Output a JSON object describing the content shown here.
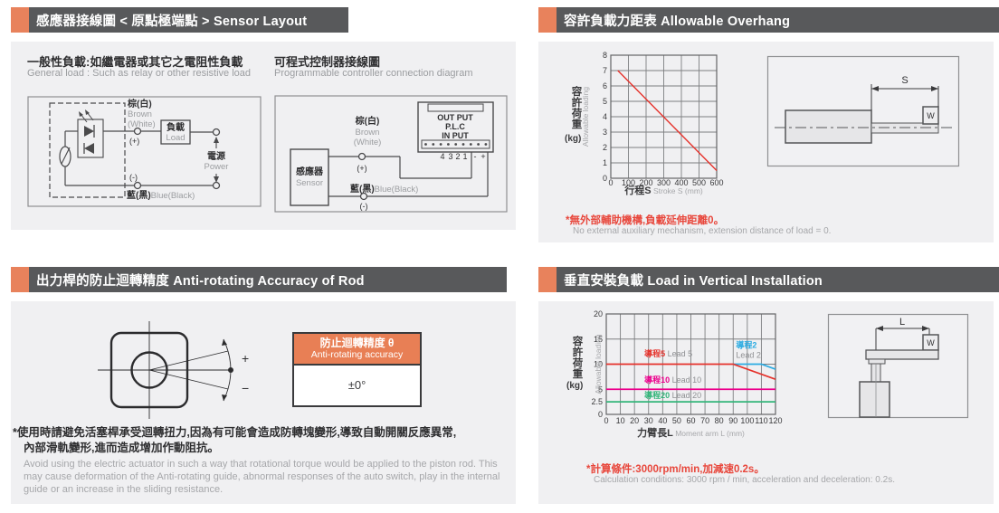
{
  "colors": {
    "accent_orange": "#e8825c",
    "titlebar_gray": "#58595b",
    "panel_bg": "#f0f0f2",
    "note_red": "#e8473c",
    "line_red": "#e5322b",
    "line_cyan": "#2aabe2",
    "line_magenta": "#ec008c",
    "line_green": "#33b57a",
    "text_dark": "#2f2f31",
    "text_gray": "#9b9da0"
  },
  "sections": {
    "sensor": {
      "title": "感應器接線圖 < 原點極端點 > Sensor Layout",
      "general": {
        "heading_zh": "一般性負載:如繼電器或其它之電阻性負載",
        "heading_en": "General load : Such as relay or other resistive load",
        "brown_zh": "棕(白)",
        "brown_en1": "Brown",
        "brown_en2": "(White)",
        "plus": "(+)",
        "load_zh": "負載",
        "load_en": "Load",
        "power_zh": "電源",
        "power_en": "Power",
        "minus": "(-)",
        "blue_zh": "藍(黑)",
        "blue_en": "Blue(Black)"
      },
      "plc": {
        "heading_zh": "可程式控制器接線圖",
        "heading_en": "Programmable controller connection diagram",
        "sensor_zh": "感應器",
        "sensor_en": "Sensor",
        "brown_zh": "棕(白)",
        "brown_en1": "Brown",
        "brown_en2": "(White)",
        "plus": "(+)",
        "blue_zh": "藍(黑)",
        "blue_en": "Blue(Black)",
        "minus": "(-)",
        "out_put": "OUT PUT",
        "plc_label": "P.L.C",
        "in_put": "IN PUT",
        "t4": "4",
        "t3": "3",
        "t2": "2",
        "t1": "1",
        "tminus": "-",
        "tplus": "+"
      }
    },
    "overhang": {
      "title": "容許負載力距表 Allowable Overhang",
      "note_zh": "*無外部輔助機構,負載延伸距離0。",
      "note_en": "No external auxiliary mechanism, extension distance of load = 0.",
      "diagram": {
        "s_label": "S",
        "w_label": "W"
      }
    },
    "antirotate": {
      "title": "出力桿的防止迴轉精度 Anti-rotating Accuracy of Rod",
      "plus": "+",
      "minus": "−",
      "table_header_zh": "防止迴轉精度 θ",
      "table_header_en": "Anti-rotating accuracy",
      "table_value": "±0°",
      "note_zh1": "*使用時請避免活塞桿承受迴轉扭力,因為有可能會造成防轉塊變形,導致自動開關反應異常,",
      "note_zh2": "內部滑軌變形,進而造成增加作動阻抗。",
      "note_en": "Avoid using the electric actuator in such a way that rotational torque would be applied to the piston rod. This may cause deformation of the Anti-rotating guide, abnormal responses of the auto switch, play in the internal guide or an increase in the sliding resistance."
    },
    "vertical": {
      "title": "垂直安裝負載 Load in Vertical Installation",
      "note_zh": "*計算條件:3000rpm/min,加減速0.2s。",
      "note_en": "Calculation conditions: 3000 rpm / min, acceleration and deceleration: 0.2s.",
      "diagram": {
        "l_label": "L",
        "w_label": "W"
      }
    }
  },
  "chart_data": [
    {
      "type": "line",
      "title": "容許負載力距表 Allowable Overhang",
      "xlabel": "行程S",
      "xlabel_en": "Stroke S (mm)",
      "ylabel": "容許荷重",
      "ylabel_unit": "(kg)",
      "ylabel_en": "Allowable loading",
      "xlim": [
        0,
        600
      ],
      "ylim": [
        0,
        8
      ],
      "xticks": [
        0,
        100,
        200,
        300,
        400,
        500,
        600
      ],
      "yticks": [
        0,
        1,
        2,
        3,
        4,
        5,
        6,
        7,
        8
      ],
      "grid": true,
      "series": [
        {
          "name": "allowable-loading",
          "color": "#e5322b",
          "width": 1.4,
          "points": [
            [
              40,
              7
            ],
            [
              600,
              0.5
            ]
          ]
        }
      ],
      "labels": []
    },
    {
      "type": "line",
      "title": "垂直安裝負載 Load in Vertical Installation",
      "xlabel": "力臂長L",
      "xlabel_en": "Moment arm L (mm)",
      "ylabel": "容許荷重",
      "ylabel_unit": "(kg)",
      "ylabel_en": "Allowable loading",
      "xlim": [
        0,
        120
      ],
      "ylim": [
        0,
        20
      ],
      "xticks": [
        0,
        10,
        20,
        30,
        40,
        50,
        60,
        70,
        80,
        90,
        100,
        110,
        120
      ],
      "yticks": [
        0,
        2.5,
        5,
        10,
        15,
        20
      ],
      "grid": true,
      "series": [
        {
          "name": "lead-2",
          "color": "#2aabe2",
          "width": 1.7,
          "points": [
            [
              90,
              10
            ],
            [
              110,
              10
            ],
            [
              120,
              9
            ]
          ]
        },
        {
          "name": "lead-5",
          "color": "#e5322b",
          "width": 1.7,
          "points": [
            [
              0,
              10
            ],
            [
              90,
              10
            ],
            [
              120,
              7
            ]
          ]
        },
        {
          "name": "lead-10",
          "color": "#ec008c",
          "width": 1.7,
          "points": [
            [
              0,
              5
            ],
            [
              120,
              5
            ]
          ]
        },
        {
          "name": "lead-20",
          "color": "#33b57a",
          "width": 1.7,
          "points": [
            [
              0,
              2.5
            ],
            [
              120,
              2.5
            ]
          ]
        }
      ],
      "labels": [
        {
          "x": 27,
          "y": 11.5,
          "parts": [
            {
              "t": "導程5",
              "c": "#e5322b",
              "b": true
            },
            {
              "t": " Lead 5",
              "c": "#8f9093"
            }
          ]
        },
        {
          "x": 92,
          "y": 13.2,
          "parts": [
            {
              "t": "導程2",
              "c": "#2aabe2",
              "b": true
            }
          ]
        },
        {
          "x": 92,
          "y": 11.3,
          "parts": [
            {
              "t": "Lead 2",
              "c": "#8f9093"
            }
          ]
        },
        {
          "x": 27,
          "y": 6.3,
          "parts": [
            {
              "t": "導程10",
              "c": "#ec008c",
              "b": true
            },
            {
              "t": " Lead 10",
              "c": "#8f9093"
            }
          ]
        },
        {
          "x": 27,
          "y": 3.2,
          "parts": [
            {
              "t": "導程20",
              "c": "#33b57a",
              "b": true
            },
            {
              "t": " Lead 20",
              "c": "#8f9093"
            }
          ]
        }
      ]
    }
  ]
}
